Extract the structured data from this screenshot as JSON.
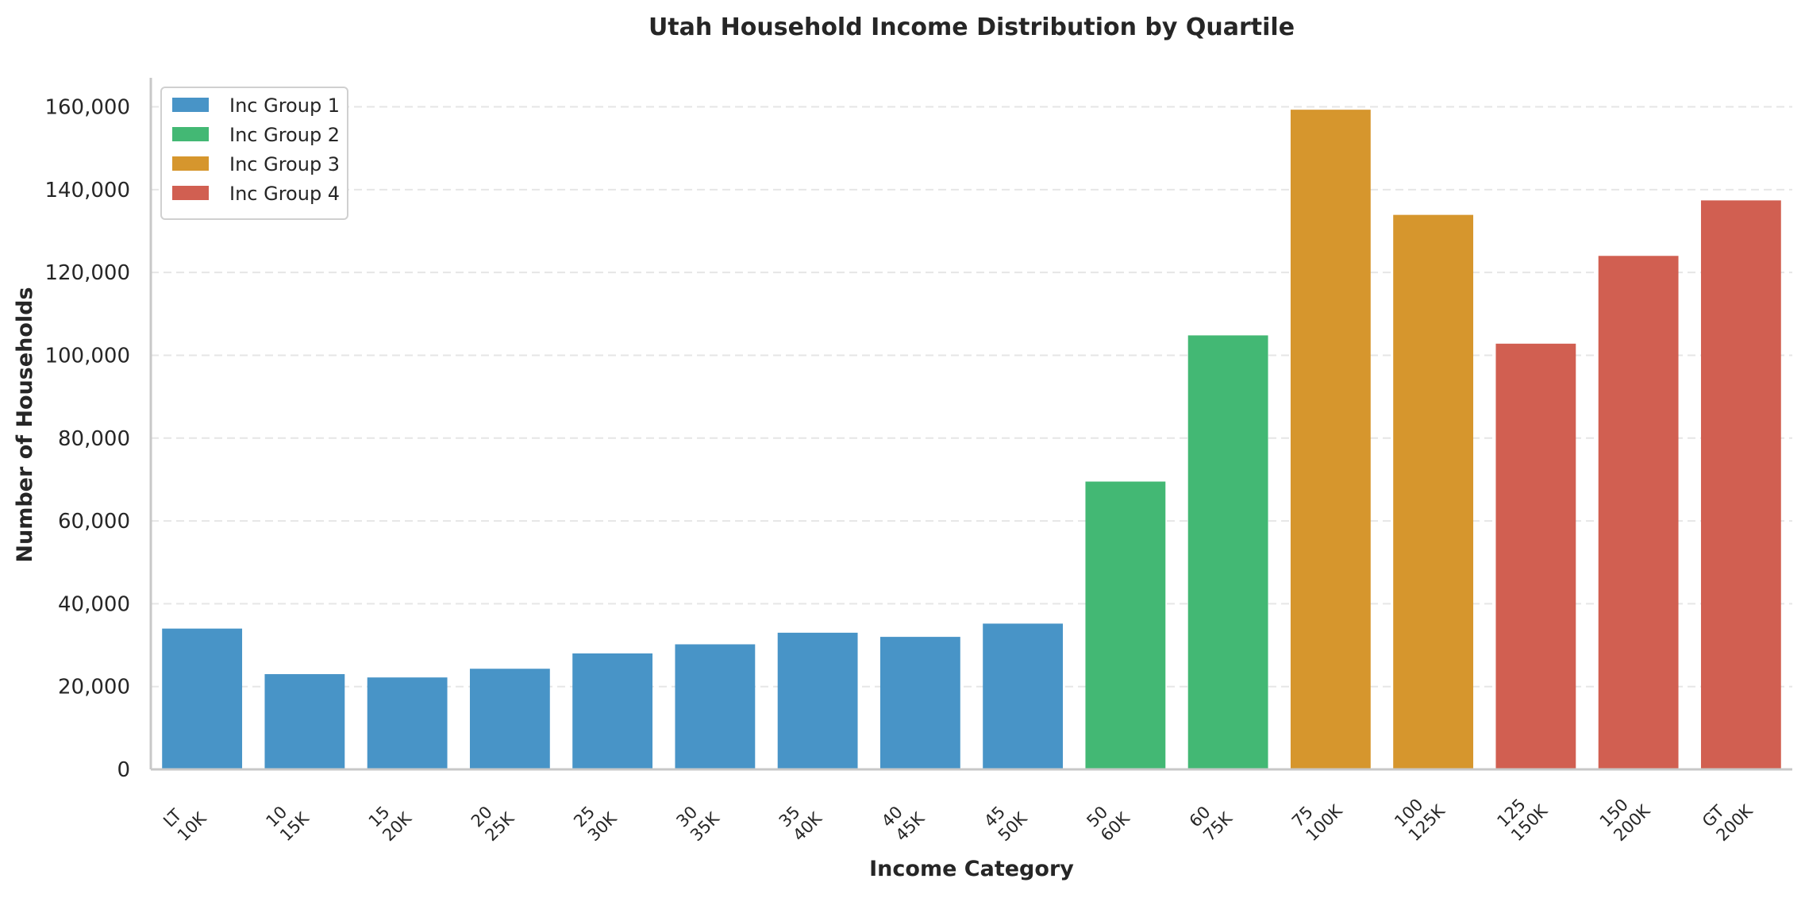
{
  "chart_data": {
    "type": "bar",
    "title": "Utah Household Income Distribution by Quartile",
    "xlabel": "Income Category",
    "ylabel": "Number of Households",
    "ylim": [
      0,
      167000
    ],
    "yticks": [
      0,
      20000,
      40000,
      60000,
      80000,
      100000,
      120000,
      140000,
      160000
    ],
    "ytick_labels": [
      "0",
      "20,000",
      "40,000",
      "60,000",
      "80,000",
      "100,000",
      "120,000",
      "140,000",
      "160,000"
    ],
    "grid": "horizontal dashed",
    "legend_position": "top-left",
    "categories": [
      [
        "LT",
        "10K"
      ],
      [
        "10",
        "15K"
      ],
      [
        "15",
        "20K"
      ],
      [
        "20",
        "25K"
      ],
      [
        "25",
        "30K"
      ],
      [
        "30",
        "35K"
      ],
      [
        "35",
        "40K"
      ],
      [
        "40",
        "45K"
      ],
      [
        "45",
        "50K"
      ],
      [
        "50",
        "60K"
      ],
      [
        "60",
        "75K"
      ],
      [
        "75",
        "100K"
      ],
      [
        "100",
        "125K"
      ],
      [
        "125",
        "150K"
      ],
      [
        "150",
        "200K"
      ],
      [
        "GT",
        "200K"
      ]
    ],
    "values": [
      34000,
      23000,
      22200,
      24300,
      28000,
      30200,
      33000,
      32000,
      35200,
      69500,
      104800,
      159300,
      133900,
      102800,
      124000,
      137400
    ],
    "groups": [
      1,
      1,
      1,
      1,
      1,
      1,
      1,
      1,
      1,
      2,
      2,
      3,
      3,
      4,
      4,
      4
    ],
    "series": [
      {
        "name": "Inc Group 1",
        "color": "#4894c7"
      },
      {
        "name": "Inc Group 2",
        "color": "#43b874"
      },
      {
        "name": "Inc Group 3",
        "color": "#d6962d"
      },
      {
        "name": "Inc Group 4",
        "color": "#d15f51"
      }
    ]
  }
}
